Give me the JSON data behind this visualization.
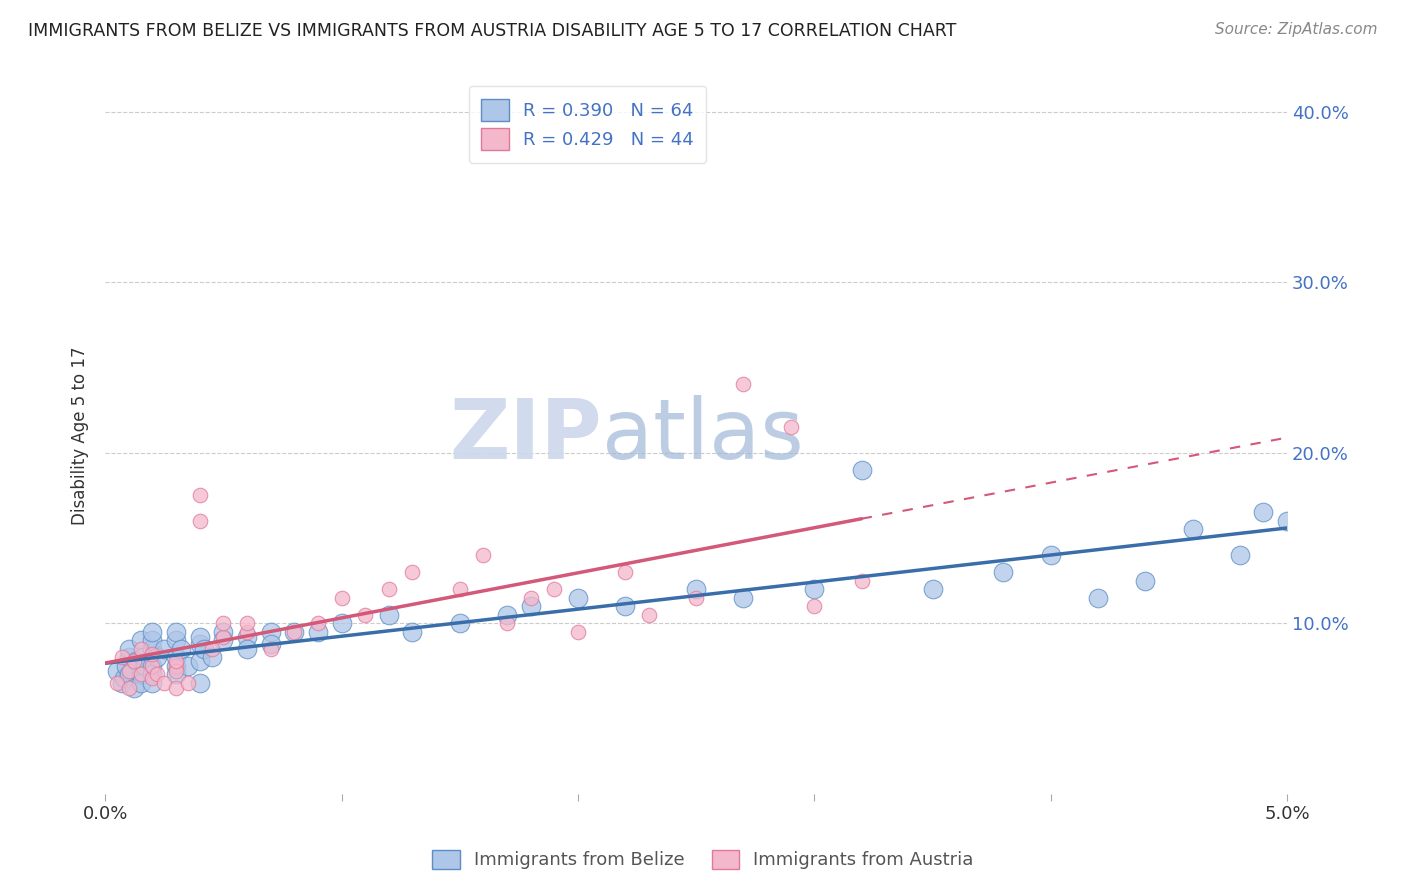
{
  "title": "IMMIGRANTS FROM BELIZE VS IMMIGRANTS FROM AUSTRIA DISABILITY AGE 5 TO 17 CORRELATION CHART",
  "source": "Source: ZipAtlas.com",
  "ylabel": "Disability Age 5 to 17",
  "xlim": [
    0.0,
    0.05
  ],
  "ylim": [
    0.0,
    0.42
  ],
  "xticks": [
    0.0,
    0.01,
    0.02,
    0.03,
    0.04,
    0.05
  ],
  "yticks": [
    0.0,
    0.1,
    0.2,
    0.3,
    0.4
  ],
  "belize_R": 0.39,
  "belize_N": 64,
  "austria_R": 0.429,
  "austria_N": 44,
  "belize_color": "#aec6e8",
  "belize_edge_color": "#5b8ec4",
  "belize_line_color": "#3a6eaa",
  "austria_color": "#f4b8cc",
  "austria_edge_color": "#e07898",
  "austria_line_color": "#d45878",
  "background_color": "#ffffff",
  "watermark_color": "#ccd8ec",
  "belize_x": [
    0.0005,
    0.0007,
    0.0008,
    0.0009,
    0.001,
    0.001,
    0.001,
    0.0012,
    0.0013,
    0.0015,
    0.0015,
    0.0015,
    0.0016,
    0.0017,
    0.002,
    0.002,
    0.002,
    0.002,
    0.002,
    0.002,
    0.0022,
    0.0025,
    0.003,
    0.003,
    0.003,
    0.003,
    0.003,
    0.0032,
    0.0035,
    0.004,
    0.004,
    0.004,
    0.004,
    0.0042,
    0.0045,
    0.005,
    0.005,
    0.006,
    0.006,
    0.007,
    0.007,
    0.008,
    0.009,
    0.01,
    0.012,
    0.013,
    0.015,
    0.017,
    0.018,
    0.02,
    0.022,
    0.025,
    0.027,
    0.03,
    0.032,
    0.035,
    0.038,
    0.04,
    0.042,
    0.044,
    0.046,
    0.048,
    0.049,
    0.05
  ],
  "belize_y": [
    0.072,
    0.065,
    0.068,
    0.075,
    0.08,
    0.07,
    0.085,
    0.062,
    0.078,
    0.09,
    0.07,
    0.065,
    0.08,
    0.075,
    0.085,
    0.09,
    0.075,
    0.07,
    0.065,
    0.095,
    0.08,
    0.085,
    0.09,
    0.075,
    0.08,
    0.095,
    0.07,
    0.085,
    0.075,
    0.088,
    0.092,
    0.078,
    0.065,
    0.085,
    0.08,
    0.095,
    0.09,
    0.092,
    0.085,
    0.095,
    0.088,
    0.095,
    0.095,
    0.1,
    0.105,
    0.095,
    0.1,
    0.105,
    0.11,
    0.115,
    0.11,
    0.12,
    0.115,
    0.12,
    0.19,
    0.12,
    0.13,
    0.14,
    0.115,
    0.125,
    0.155,
    0.14,
    0.165,
    0.16
  ],
  "austria_x": [
    0.0005,
    0.0007,
    0.001,
    0.001,
    0.0012,
    0.0015,
    0.0015,
    0.002,
    0.002,
    0.002,
    0.0022,
    0.0025,
    0.003,
    0.003,
    0.003,
    0.003,
    0.0035,
    0.004,
    0.004,
    0.0045,
    0.005,
    0.005,
    0.006,
    0.006,
    0.007,
    0.008,
    0.009,
    0.01,
    0.011,
    0.012,
    0.013,
    0.015,
    0.016,
    0.017,
    0.018,
    0.019,
    0.02,
    0.022,
    0.023,
    0.025,
    0.027,
    0.029,
    0.03,
    0.032
  ],
  "austria_y": [
    0.065,
    0.08,
    0.072,
    0.062,
    0.078,
    0.085,
    0.07,
    0.068,
    0.075,
    0.082,
    0.07,
    0.065,
    0.075,
    0.062,
    0.072,
    0.078,
    0.065,
    0.16,
    0.175,
    0.085,
    0.092,
    0.1,
    0.095,
    0.1,
    0.085,
    0.095,
    0.1,
    0.115,
    0.105,
    0.12,
    0.13,
    0.12,
    0.14,
    0.1,
    0.115,
    0.12,
    0.095,
    0.13,
    0.105,
    0.115,
    0.24,
    0.215,
    0.11,
    0.125
  ]
}
